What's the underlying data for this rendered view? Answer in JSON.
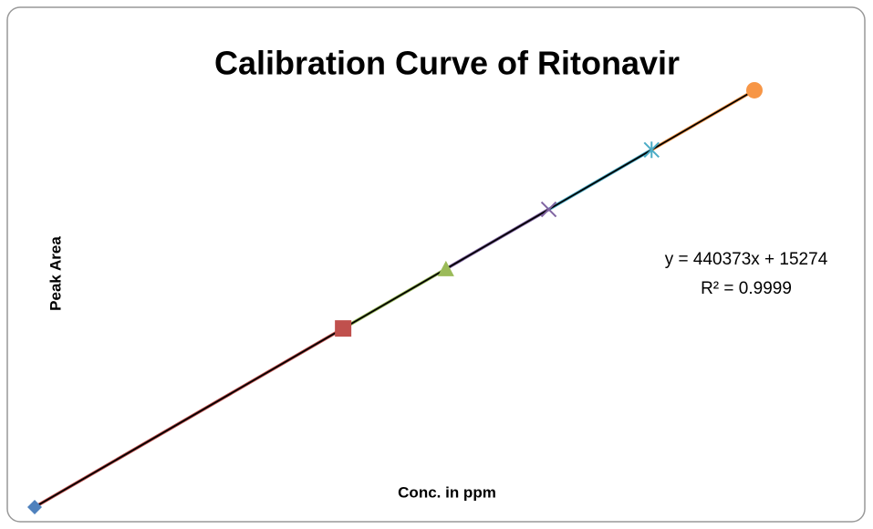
{
  "chart_data": {
    "type": "line",
    "title": "Calibration Curve of Ritonavir",
    "x_label": "Conc. in ppm",
    "y_label": "Peak Area",
    "x": [
      2,
      8,
      10,
      12,
      14,
      16
    ],
    "values": [
      896020,
      3538258,
      4419004,
      5299750,
      6180496,
      7061242
    ],
    "point_colors": [
      "#4f81bd",
      "#c0504d",
      "#9bbb59",
      "#8064a2",
      "#4bacc6",
      "#f79646"
    ],
    "markers": [
      "diamond",
      "square",
      "triangle",
      "x",
      "asterisk",
      "circle"
    ],
    "xlim": [
      2,
      16
    ],
    "ylim": [
      800000,
      7200000
    ],
    "trendline": {
      "slope": 440373,
      "intercept": 15274,
      "color": "#000000",
      "equation": "y = 440373x + 15274",
      "r2": "R² = 0.9999"
    }
  }
}
